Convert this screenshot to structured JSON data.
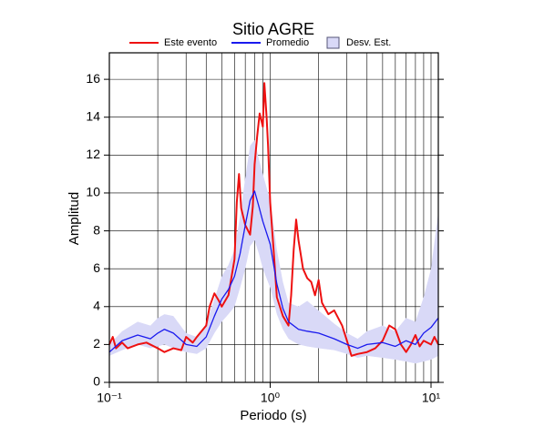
{
  "chart_data": {
    "type": "line",
    "title": "Sitio AGRE",
    "xlabel": "Periodo (s)",
    "ylabel": "Amplitud",
    "xscale": "log",
    "grid": true,
    "xlim": [
      0.1,
      11.1
    ],
    "ylim": [
      0,
      17.4
    ],
    "xticks": [
      {
        "value": 0.1,
        "label": "10⁻¹"
      },
      {
        "value": 1,
        "label": "10⁰"
      },
      {
        "value": 10,
        "label": "10¹"
      }
    ],
    "yticks": [
      0,
      2,
      4,
      6,
      8,
      10,
      12,
      14,
      16
    ],
    "band": {
      "name": "Desv. Est.",
      "color": "#d9d9f7",
      "edgecolor": "#555577",
      "x": [
        0.1,
        0.12,
        0.15,
        0.18,
        0.2,
        0.22,
        0.25,
        0.3,
        0.35,
        0.4,
        0.45,
        0.5,
        0.55,
        0.6,
        0.65,
        0.7,
        0.75,
        0.8,
        0.85,
        0.9,
        1.0,
        1.1,
        1.2,
        1.3,
        1.5,
        1.7,
        2,
        2.5,
        3,
        3.5,
        4,
        5,
        6,
        7,
        8,
        9,
        10,
        11.1
      ],
      "lower": [
        1.4,
        1.7,
        2.0,
        1.8,
        1.9,
        2.0,
        1.8,
        1.6,
        1.5,
        1.8,
        2.6,
        3.2,
        3.6,
        4.0,
        5.0,
        6.0,
        7.2,
        7.5,
        6.8,
        6.0,
        5.0,
        3.6,
        2.8,
        2.3,
        2.0,
        1.9,
        1.8,
        1.7,
        1.5,
        1.3,
        1.4,
        1.3,
        1.2,
        1.1,
        1.0,
        1.1,
        1.2,
        1.4
      ],
      "upper": [
        2.0,
        2.7,
        3.2,
        3.0,
        3.4,
        3.6,
        3.5,
        2.6,
        2.4,
        3.1,
        4.4,
        5.6,
        6.2,
        7.0,
        8.8,
        10.8,
        12.5,
        12.8,
        11.8,
        11.0,
        9.6,
        7.0,
        5.3,
        4.2,
        4.0,
        4.3,
        3.8,
        3.1,
        2.6,
        2.3,
        2.7,
        3.0,
        2.7,
        3.4,
        3.2,
        4.5,
        6.0,
        9.0
      ]
    },
    "series": [
      {
        "name": "Este evento",
        "color": "#ee1111",
        "x": [
          0.1,
          0.105,
          0.11,
          0.12,
          0.13,
          0.15,
          0.17,
          0.2,
          0.22,
          0.25,
          0.28,
          0.3,
          0.33,
          0.35,
          0.4,
          0.42,
          0.45,
          0.48,
          0.5,
          0.55,
          0.6,
          0.62,
          0.64,
          0.66,
          0.7,
          0.75,
          0.78,
          0.8,
          0.83,
          0.86,
          0.9,
          0.92,
          0.95,
          0.97,
          1.0,
          1.05,
          1.1,
          1.2,
          1.3,
          1.35,
          1.4,
          1.45,
          1.5,
          1.6,
          1.7,
          1.8,
          1.9,
          2.0,
          2.1,
          2.3,
          2.5,
          2.8,
          3.0,
          3.2,
          3.5,
          4,
          4.5,
          5,
          5.5,
          6,
          6.5,
          7,
          7.5,
          8,
          8.5,
          9,
          10,
          10.5,
          11.1
        ],
        "values": [
          2.0,
          2.4,
          1.8,
          2.1,
          1.8,
          2.0,
          2.1,
          1.8,
          1.6,
          1.8,
          1.7,
          2.4,
          2.1,
          2.4,
          3.0,
          4.0,
          4.7,
          4.3,
          4.0,
          4.6,
          6.5,
          9.5,
          11.0,
          9.2,
          8.3,
          7.8,
          9.3,
          11.5,
          13.0,
          14.2,
          13.5,
          15.8,
          14.0,
          12.5,
          9.5,
          7.0,
          4.5,
          3.5,
          3.0,
          4.6,
          7.0,
          8.6,
          7.5,
          6.0,
          5.5,
          5.3,
          4.6,
          5.4,
          4.2,
          3.6,
          3.8,
          3.0,
          2.2,
          1.4,
          1.5,
          1.6,
          1.8,
          2.2,
          3.0,
          2.8,
          2.0,
          1.6,
          2.0,
          2.5,
          1.9,
          2.2,
          2.0,
          2.4,
          2.0
        ]
      },
      {
        "name": "Promedio",
        "color": "#1a1aee",
        "x": [
          0.1,
          0.12,
          0.15,
          0.18,
          0.2,
          0.22,
          0.25,
          0.3,
          0.35,
          0.4,
          0.45,
          0.5,
          0.55,
          0.6,
          0.65,
          0.7,
          0.75,
          0.8,
          0.85,
          0.9,
          1.0,
          1.1,
          1.2,
          1.3,
          1.5,
          1.7,
          2,
          2.5,
          3,
          3.5,
          4,
          5,
          6,
          7,
          8,
          9,
          10,
          11.1
        ],
        "values": [
          1.6,
          2.2,
          2.5,
          2.3,
          2.6,
          2.8,
          2.6,
          2.0,
          1.9,
          2.4,
          3.5,
          4.4,
          4.9,
          5.6,
          6.8,
          8.3,
          9.6,
          10.1,
          9.3,
          8.5,
          7.3,
          5.2,
          3.9,
          3.2,
          2.8,
          2.7,
          2.6,
          2.3,
          2.0,
          1.8,
          2.0,
          2.1,
          1.9,
          2.2,
          2.0,
          2.6,
          2.9,
          3.4
        ]
      }
    ]
  }
}
